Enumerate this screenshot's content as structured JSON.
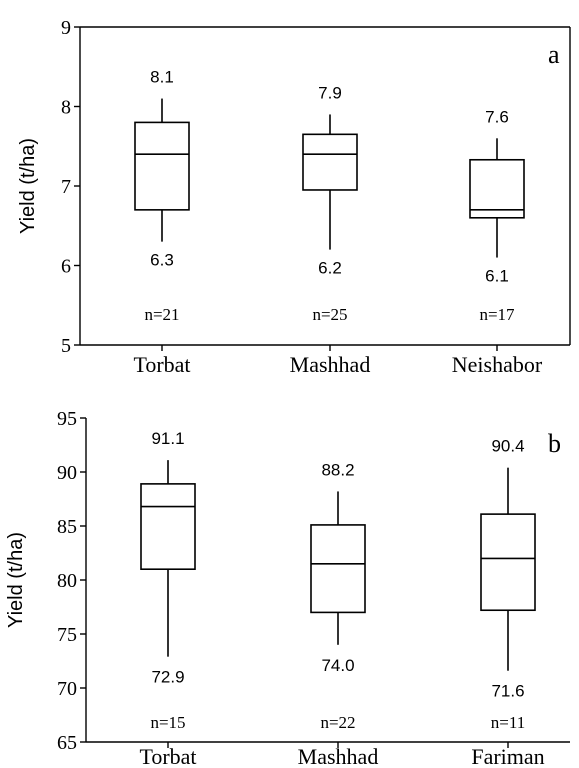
{
  "chart_data": [
    {
      "type": "boxplot",
      "panel_letter": "a",
      "ylabel": "Yield (t/ha)",
      "ylim": [
        5,
        9
      ],
      "yticks": [
        5,
        6,
        7,
        8,
        9
      ],
      "grid": false,
      "categories": [
        "Torbat",
        "Mashhad",
        "Neishabor"
      ],
      "boxes": [
        {
          "category": "Torbat",
          "min": 6.3,
          "q1": 6.7,
          "median": 7.4,
          "q3": 7.8,
          "max": 8.1,
          "min_label": "6.3",
          "max_label": "8.1",
          "n_label": "n=21"
        },
        {
          "category": "Mashhad",
          "min": 6.2,
          "q1": 6.95,
          "median": 7.4,
          "q3": 7.65,
          "max": 7.9,
          "min_label": "6.2",
          "max_label": "7.9",
          "n_label": "n=25"
        },
        {
          "category": "Neishabor",
          "min": 6.1,
          "q1": 6.6,
          "median": 6.7,
          "q3": 7.33,
          "max": 7.6,
          "min_label": "6.1",
          "max_label": "7.6",
          "n_label": "n=17"
        }
      ]
    },
    {
      "type": "boxplot",
      "panel_letter": "b",
      "ylabel": "Yield (t/ha)",
      "ylim": [
        65,
        95
      ],
      "yticks": [
        65,
        70,
        75,
        80,
        85,
        90,
        95
      ],
      "grid": false,
      "categories": [
        "Torbat",
        "Mashhad",
        "Fariman"
      ],
      "boxes": [
        {
          "category": "Torbat",
          "min": 72.9,
          "q1": 81.0,
          "median": 86.8,
          "q3": 88.9,
          "max": 91.1,
          "min_label": "72.9",
          "max_label": "91.1",
          "n_label": "n=15"
        },
        {
          "category": "Mashhad",
          "min": 74.0,
          "q1": 77.0,
          "median": 81.5,
          "q3": 85.1,
          "max": 88.2,
          "min_label": "74.0",
          "max_label": "88.2",
          "n_label": "n=22"
        },
        {
          "category": "Fariman",
          "min": 71.6,
          "q1": 77.2,
          "median": 82.0,
          "q3": 86.1,
          "max": 90.4,
          "min_label": "71.6",
          "max_label": "90.4",
          "n_label": "n=11"
        }
      ]
    }
  ]
}
